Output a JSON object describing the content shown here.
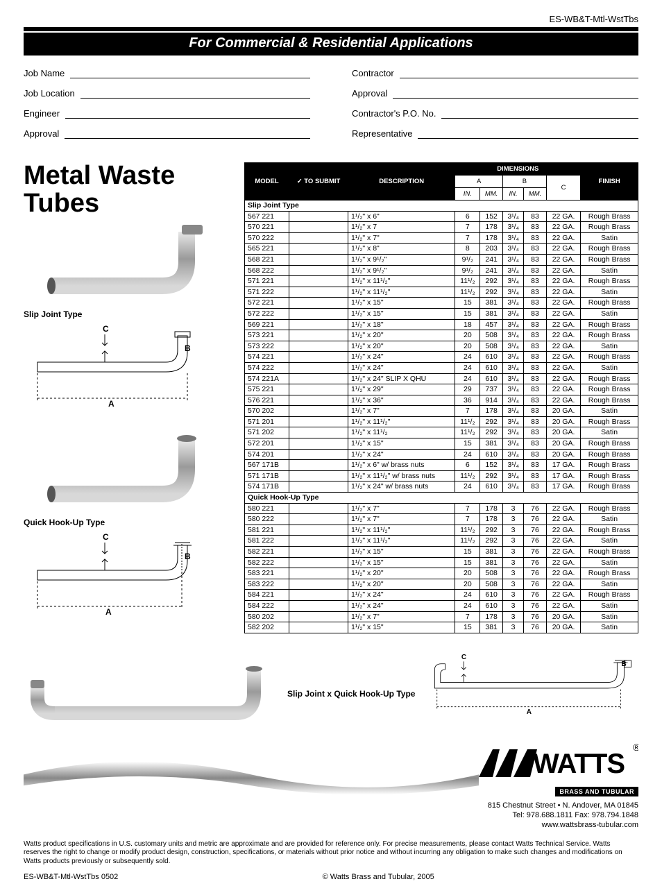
{
  "doc_code": "ES-WB&T-Mtl-WstTbs",
  "banner": "For  Commercial & Residential Applications",
  "form_left": [
    "Job Name",
    "Job Location",
    "Engineer",
    "Approval"
  ],
  "form_right": [
    "Contractor",
    "Approval",
    "Contractor's P.O. No.",
    "Representative"
  ],
  "title_l1": "Metal Waste",
  "title_l2": "Tubes",
  "diag1_label": "Slip Joint Type",
  "diag2_label": "Quick Hook-Up Type",
  "diag3_label": "Slip Joint x Quick Hook-Up Type",
  "table": {
    "headers": {
      "model": "MODEL",
      "submit": "✓ TO SUBMIT",
      "description": "DESCRIPTION",
      "dimensions": "DIMENSIONS",
      "finish": "FINISH",
      "a": "A",
      "b": "B",
      "c": "C",
      "in": "in.",
      "mm": "mm."
    },
    "sections": [
      {
        "name": "Slip Joint Type",
        "rows": [
          {
            "model": "567 221",
            "desc": "1¹/₂\" x 6\"",
            "a_in": "6",
            "a_mm": "152",
            "b_in": "3¹/₄",
            "b_mm": "83",
            "c": "22 GA.",
            "finish": "Rough Brass"
          },
          {
            "model": "570 221",
            "desc": "1¹/₂\" x 7",
            "a_in": "7",
            "a_mm": "178",
            "b_in": "3¹/₄",
            "b_mm": "83",
            "c": "22 GA.",
            "finish": "Rough Brass"
          },
          {
            "model": "570 222",
            "desc": "1¹/₂\" x 7\"",
            "a_in": "7",
            "a_mm": "178",
            "b_in": "3¹/₄",
            "b_mm": "83",
            "c": "22 GA.",
            "finish": "Satin"
          },
          {
            "model": "565 221",
            "desc": "1¹/₂\" x 8\"",
            "a_in": "8",
            "a_mm": "203",
            "b_in": "3¹/₄",
            "b_mm": "83",
            "c": "22 GA.",
            "finish": "Rough Brass"
          },
          {
            "model": "568 221",
            "desc": "1¹/₂\" x 9¹/₂\"",
            "a_in": "9¹/₂",
            "a_mm": "241",
            "b_in": "3¹/₄",
            "b_mm": "83",
            "c": "22 GA.",
            "finish": "Rough Brass"
          },
          {
            "model": "568 222",
            "desc": "1¹/₂\" x 9¹/₂\"",
            "a_in": "9¹/₂",
            "a_mm": "241",
            "b_in": "3¹/₄",
            "b_mm": "83",
            "c": "22 GA.",
            "finish": "Satin"
          },
          {
            "model": "571 221",
            "desc": "1¹/₂\" x 11¹/₂\"",
            "a_in": "11¹/₂",
            "a_mm": "292",
            "b_in": "3¹/₄",
            "b_mm": "83",
            "c": "22 GA.",
            "finish": "Rough Brass"
          },
          {
            "model": "571 222",
            "desc": "1¹/₂\" x 11¹/₂\"",
            "a_in": "11¹/₂",
            "a_mm": "292",
            "b_in": "3¹/₄",
            "b_mm": "83",
            "c": "22 GA.",
            "finish": "Satin"
          },
          {
            "model": "572 221",
            "desc": "1¹/₂\" x 15\"",
            "a_in": "15",
            "a_mm": "381",
            "b_in": "3¹/₄",
            "b_mm": "83",
            "c": "22 GA.",
            "finish": "Rough Brass"
          },
          {
            "model": "572 222",
            "desc": "1¹/₂\" x 15\"",
            "a_in": "15",
            "a_mm": "381",
            "b_in": "3¹/₄",
            "b_mm": "83",
            "c": "22 GA.",
            "finish": "Satin"
          },
          {
            "model": "569 221",
            "desc": "1¹/₂\" x 18\"",
            "a_in": "18",
            "a_mm": "457",
            "b_in": "3¹/₄",
            "b_mm": "83",
            "c": "22 GA.",
            "finish": "Rough Brass"
          },
          {
            "model": "573 221",
            "desc": "1¹/₂\" x 20\"",
            "a_in": "20",
            "a_mm": "508",
            "b_in": "3¹/₄",
            "b_mm": "83",
            "c": "22 GA.",
            "finish": "Rough Brass"
          },
          {
            "model": "573 222",
            "desc": "1¹/₂\" x 20\"",
            "a_in": "20",
            "a_mm": "508",
            "b_in": "3¹/₄",
            "b_mm": "83",
            "c": "22 GA.",
            "finish": "Satin"
          },
          {
            "model": "574 221",
            "desc": "1¹/₂\" x 24\"",
            "a_in": "24",
            "a_mm": "610",
            "b_in": "3¹/₄",
            "b_mm": "83",
            "c": "22 GA.",
            "finish": "Rough Brass"
          },
          {
            "model": "574 222",
            "desc": "1¹/₂\" x 24\"",
            "a_in": "24",
            "a_mm": "610",
            "b_in": "3¹/₄",
            "b_mm": "83",
            "c": "22 GA.",
            "finish": "Satin"
          },
          {
            "model": "574 221A",
            "desc": "1¹/₂\" x 24\" SLIP X QHU",
            "a_in": "24",
            "a_mm": "610",
            "b_in": "3¹/₄",
            "b_mm": "83",
            "c": "22 GA.",
            "finish": "Rough Brass"
          },
          {
            "model": "575 221",
            "desc": "1¹/₂\" x 29\"",
            "a_in": "29",
            "a_mm": "737",
            "b_in": "3¹/₄",
            "b_mm": "83",
            "c": "22 GA.",
            "finish": "Rough Brass"
          },
          {
            "model": "576 221",
            "desc": "1¹/₂\" x 36\"",
            "a_in": "36",
            "a_mm": "914",
            "b_in": "3¹/₄",
            "b_mm": "83",
            "c": "22 GA.",
            "finish": "Rough Brass"
          },
          {
            "model": "570 202",
            "desc": "1¹/₂\" x 7\"",
            "a_in": "7",
            "a_mm": "178",
            "b_in": "3¹/₄",
            "b_mm": "83",
            "c": "20 GA.",
            "finish": "Satin"
          },
          {
            "model": "571 201",
            "desc": "1¹/₂\" x 11¹/₂\"",
            "a_in": "11¹/₂",
            "a_mm": "292",
            "b_in": "3¹/₄",
            "b_mm": "83",
            "c": "20 GA.",
            "finish": "Rough Brass"
          },
          {
            "model": "571 202",
            "desc": "1¹/₂\" x 11¹/₂",
            "a_in": "11¹/₂",
            "a_mm": "292",
            "b_in": "3¹/₄",
            "b_mm": "83",
            "c": "20 GA.",
            "finish": "Satin"
          },
          {
            "model": "572 201",
            "desc": "1¹/₂\" x 15\"",
            "a_in": "15",
            "a_mm": "381",
            "b_in": "3¹/₄",
            "b_mm": "83",
            "c": "20 GA.",
            "finish": "Rough Brass"
          },
          {
            "model": "574 201",
            "desc": "1¹/₂\" x 24\"",
            "a_in": "24",
            "a_mm": "610",
            "b_in": "3¹/₄",
            "b_mm": "83",
            "c": "20 GA.",
            "finish": "Rough Brass"
          },
          {
            "model": "567 171B",
            "desc": "1¹/₂\" x 6\" w/ brass nuts",
            "a_in": "6",
            "a_mm": "152",
            "b_in": "3¹/₄",
            "b_mm": "83",
            "c": "17 GA.",
            "finish": "Rough Brass"
          },
          {
            "model": "571 171B",
            "desc": "1¹/₂\" x 11¹/₂\" w/ brass nuts",
            "a_in": "11¹/₂",
            "a_mm": "292",
            "b_in": "3¹/₄",
            "b_mm": "83",
            "c": "17 GA.",
            "finish": "Rough Brass"
          },
          {
            "model": "574 171B",
            "desc": "1¹/₂\" x 24\" w/ brass nuts",
            "a_in": "24",
            "a_mm": "610",
            "b_in": "3¹/₄",
            "b_mm": "83",
            "c": "17 GA.",
            "finish": "Rough Brass"
          }
        ]
      },
      {
        "name": "Quick Hook-Up Type",
        "rows": [
          {
            "model": "580 221",
            "desc": "1¹/₂\" x 7\"",
            "a_in": "7",
            "a_mm": "178",
            "b_in": "3",
            "b_mm": "76",
            "c": "22 GA.",
            "finish": "Rough Brass"
          },
          {
            "model": "580 222",
            "desc": "1¹/₂\" x 7\"",
            "a_in": "7",
            "a_mm": "178",
            "b_in": "3",
            "b_mm": "76",
            "c": "22 GA.",
            "finish": "Satin"
          },
          {
            "model": "581 221",
            "desc": "1¹/₂\" x 11¹/₂\"",
            "a_in": "11¹/₂",
            "a_mm": "292",
            "b_in": "3",
            "b_mm": "76",
            "c": "22 GA.",
            "finish": "Rough Brass"
          },
          {
            "model": "581 222",
            "desc": "1¹/₂\" x 11¹/₂\"",
            "a_in": "11¹/₂",
            "a_mm": "292",
            "b_in": "3",
            "b_mm": "76",
            "c": "22 GA.",
            "finish": "Satin"
          },
          {
            "model": "582 221",
            "desc": "1¹/₂\" x 15\"",
            "a_in": "15",
            "a_mm": "381",
            "b_in": "3",
            "b_mm": "76",
            "c": "22 GA.",
            "finish": "Rough Brass"
          },
          {
            "model": "582 222",
            "desc": "1¹/₂\" x 15\"",
            "a_in": "15",
            "a_mm": "381",
            "b_in": "3",
            "b_mm": "76",
            "c": "22 GA.",
            "finish": "Satin"
          },
          {
            "model": "583 221",
            "desc": "1¹/₂\" x 20\"",
            "a_in": "20",
            "a_mm": "508",
            "b_in": "3",
            "b_mm": "76",
            "c": "22 GA.",
            "finish": "Rough Brass"
          },
          {
            "model": "583 222",
            "desc": "1¹/₂\" x 20\"",
            "a_in": "20",
            "a_mm": "508",
            "b_in": "3",
            "b_mm": "76",
            "c": "22 GA.",
            "finish": "Satin"
          },
          {
            "model": "584 221",
            "desc": "1¹/₂\" x 24\"",
            "a_in": "24",
            "a_mm": "610",
            "b_in": "3",
            "b_mm": "76",
            "c": "22 GA.",
            "finish": "Rough Brass"
          },
          {
            "model": "584 222",
            "desc": "1¹/₂\" x 24\"",
            "a_in": "24",
            "a_mm": "610",
            "b_in": "3",
            "b_mm": "76",
            "c": "22 GA.",
            "finish": "Satin"
          },
          {
            "model": "580 202",
            "desc": "1¹/₂\" x 7\"",
            "a_in": "7",
            "a_mm": "178",
            "b_in": "3",
            "b_mm": "76",
            "c": "20 GA.",
            "finish": "Satin"
          },
          {
            "model": "582 202",
            "desc": "1¹/₂\" x 15\"",
            "a_in": "15",
            "a_mm": "381",
            "b_in": "3",
            "b_mm": "76",
            "c": "20 GA.",
            "finish": "Satin"
          }
        ]
      }
    ]
  },
  "logo_text": "WATTS",
  "logo_sub": "BRASS AND TUBULAR",
  "address_l1": "815 Chestnut Street • N. Andover, MA 01845",
  "address_l2": "Tel: 978.688.1811 Fax: 978.794.1848",
  "address_l3": "www.wattsbrass-tubular.com",
  "disclaimer": "Watts product specifications in U.S. customary units and metric are approximate and are provided for reference only. For precise measurements, please contact Watts Technical Service. Watts reserves the right to change or modify product design, construction, specifications, or materials without prior notice and without incurring any obligation to make such changes and modifications on Watts products previously or subsequently sold.",
  "footer_left": "ES-WB&T-Mtl-WstTbs   0502",
  "footer_center": "© Watts Brass and Tubular, 2005",
  "colors": {
    "black": "#000000",
    "pipe_gray": "#8a8a8a",
    "pipe_light": "#d8d8d8"
  }
}
